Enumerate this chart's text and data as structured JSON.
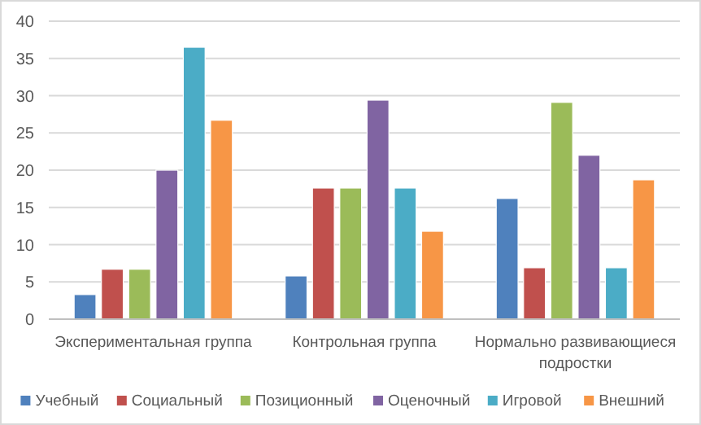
{
  "chart_data": {
    "type": "bar",
    "categories": [
      "Экспериментальная группа",
      "Контрольная  группа",
      "Нормально развивающиеся подростки"
    ],
    "series": [
      {
        "name": "Учебный",
        "color": "#4f81bd",
        "values": [
          3.3,
          5.8,
          16.2
        ]
      },
      {
        "name": "Социальный",
        "color": "#c0504d",
        "values": [
          6.7,
          17.6,
          6.9
        ]
      },
      {
        "name": "Позиционный",
        "color": "#9bbb59",
        "values": [
          6.7,
          17.6,
          29.1
        ]
      },
      {
        "name": "Оценочный",
        "color": "#8064a2",
        "values": [
          20,
          29.4,
          22
        ]
      },
      {
        "name": "Игровой",
        "color": "#4bacc6",
        "values": [
          36.5,
          17.6,
          6.9
        ]
      },
      {
        "name": "Внешний",
        "color": "#f79646",
        "values": [
          26.7,
          11.8,
          18.7
        ]
      }
    ],
    "ylim": [
      0,
      40
    ],
    "yticks": [
      0,
      5,
      10,
      15,
      20,
      25,
      30,
      35,
      40
    ],
    "grid": "y",
    "legend": "bottom"
  }
}
